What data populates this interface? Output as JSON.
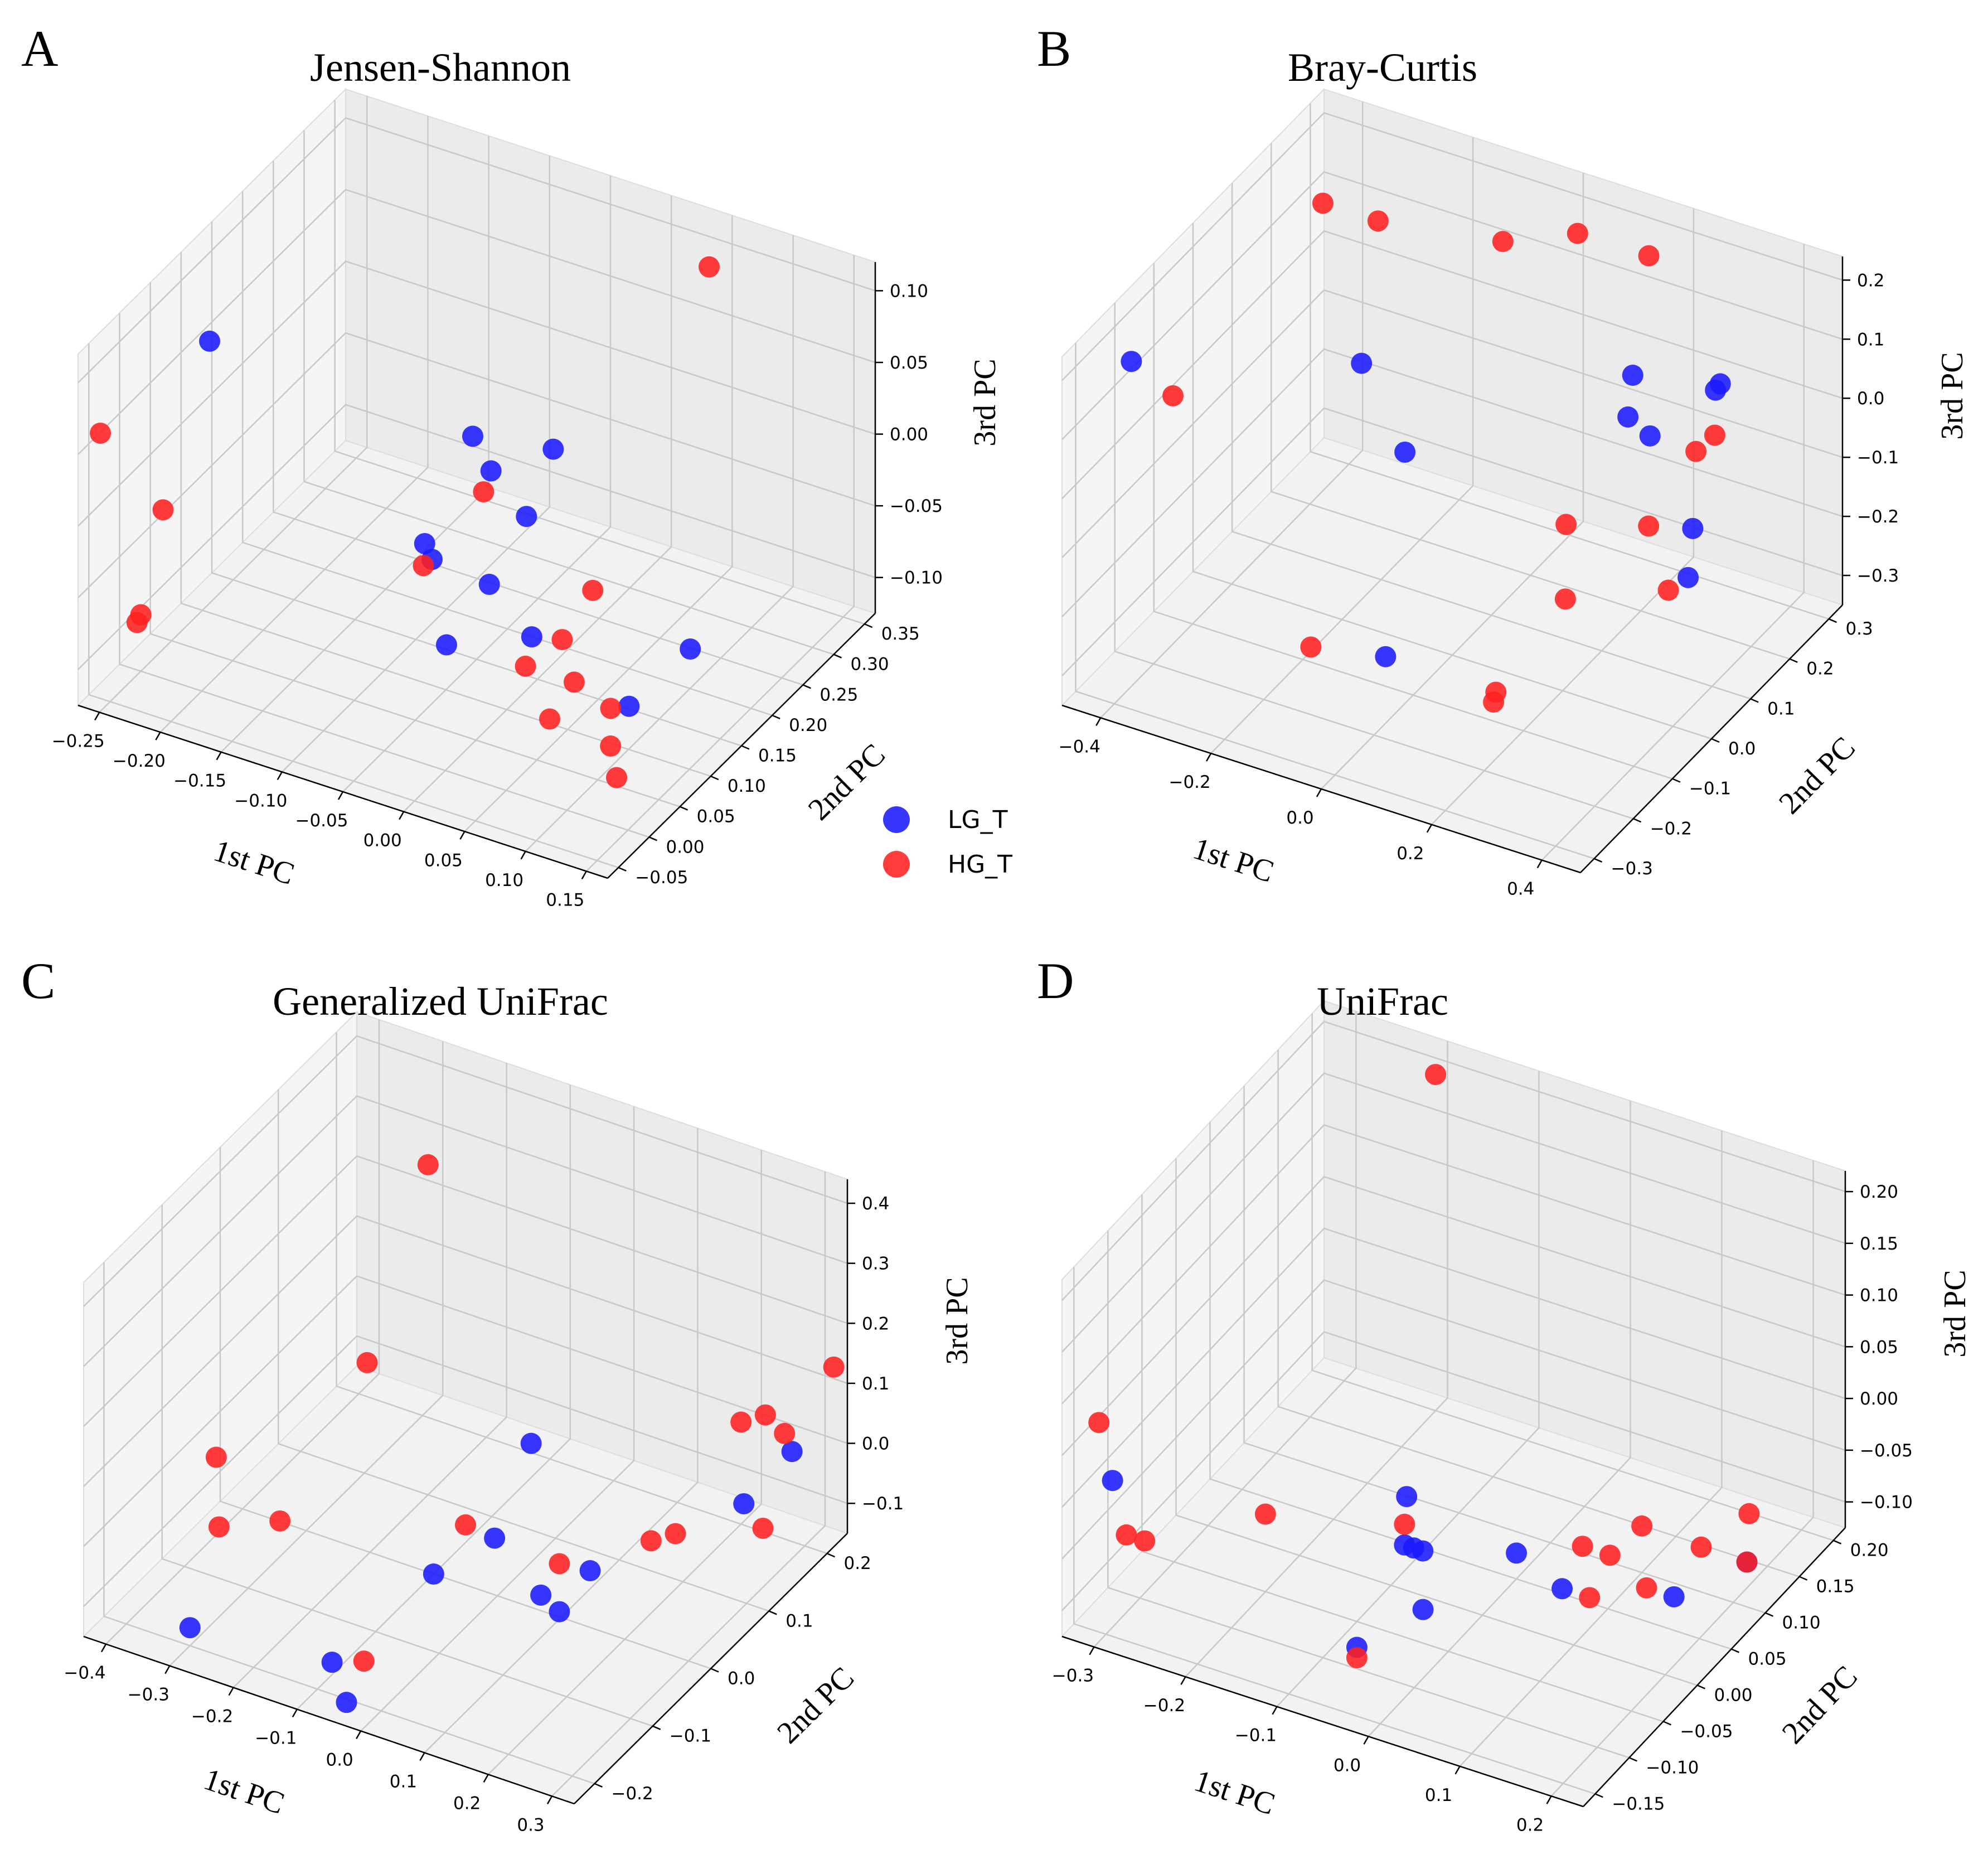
{
  "legend": [
    {
      "label": "LG_T",
      "color": "#1a1aff"
    },
    {
      "label": "HG_T",
      "color": "#ff2020"
    }
  ],
  "chart_data": [
    {
      "type": "scatter",
      "panel_letter": "A",
      "title": "Jensen-Shannon",
      "xlabel": "1st PC",
      "ylabel": "2nd PC",
      "zlabel": "3rd PC",
      "x_ticks": [
        "−0.25",
        "−0.20",
        "−0.15",
        "−0.10",
        "−0.05",
        "0.00",
        "0.05",
        "0.10",
        "0.15"
      ],
      "y_ticks": [
        "−0.05",
        "0.00",
        "0.05",
        "0.10",
        "0.15",
        "0.20",
        "0.25",
        "0.30",
        "0.35"
      ],
      "z_ticks": [
        "−0.10",
        "−0.05",
        "0.00",
        "0.05",
        "0.10"
      ],
      "series": [
        {
          "name": "LG_T",
          "color": "#1a1aff",
          "points": [
            [
              -0.239,
              0.09,
              0.07
            ],
            [
              -0.095,
              0.32,
              -0.11
            ],
            [
              -0.129,
              0.3,
              -0.055
            ],
            [
              -0.114,
              0.3,
              -0.075
            ],
            [
              -0.073,
              0.32,
              -0.057
            ],
            [
              -0.123,
              0.21,
              -0.09
            ],
            [
              -0.122,
              0.22,
              -0.105
            ],
            [
              -0.08,
              0.23,
              -0.115
            ],
            [
              -0.03,
              0.2,
              -0.125
            ],
            [
              0.06,
              0.18,
              -0.14
            ],
            [
              0.08,
              0.24,
              -0.12
            ],
            [
              -0.1,
              0.2,
              -0.15
            ]
          ]
        },
        {
          "name": "HG_T",
          "color": "#ff2020",
          "points": [
            [
              -0.258,
              -0.05,
              0.06
            ],
            [
              -0.252,
              0.04,
              -0.03
            ],
            [
              -0.245,
              -0.01,
              -0.08
            ],
            [
              -0.238,
              -0.03,
              -0.075
            ],
            [
              -0.11,
              0.28,
              -0.08
            ],
            [
              -0.119,
              0.2,
              -0.1
            ],
            [
              0.05,
              0.33,
              0.1
            ],
            [
              0.01,
              0.22,
              -0.09
            ],
            [
              -0.005,
              0.2,
              -0.12
            ],
            [
              -0.02,
              0.17,
              -0.13
            ],
            [
              0.02,
              0.17,
              -0.13
            ],
            [
              0.01,
              0.15,
              -0.15
            ],
            [
              0.05,
              0.17,
              -0.14
            ],
            [
              0.06,
              0.15,
              -0.155
            ],
            [
              0.07,
              0.14,
              -0.17
            ]
          ]
        }
      ]
    },
    {
      "type": "scatter",
      "panel_letter": "B",
      "title": "Bray-Curtis",
      "xlabel": "1st PC",
      "ylabel": "2nd PC",
      "zlabel": "3rd PC",
      "x_ticks": [
        "−0.4",
        "−0.2",
        "0.0",
        "0.2",
        "0.4"
      ],
      "y_ticks": [
        "−0.3",
        "−0.2",
        "−0.1",
        "0.0",
        "0.1",
        "0.2",
        "0.3"
      ],
      "z_ticks": [
        "−0.3",
        "−0.2",
        "−0.1",
        "0.0",
        "0.1",
        "0.2"
      ],
      "series": [
        {
          "name": "LG_T",
          "color": "#1a1aff",
          "points": [
            [
              -0.44,
              -0.2,
              0.15
            ],
            [
              -0.2,
              0.05,
              0.05
            ],
            [
              -0.1,
              0.02,
              -0.05
            ],
            [
              -0.05,
              -0.1,
              -0.3
            ],
            [
              0.15,
              0.25,
              0.0
            ],
            [
              0.12,
              0.28,
              -0.1
            ],
            [
              0.16,
              0.28,
              -0.12
            ],
            [
              0.3,
              0.25,
              0.02
            ],
            [
              0.33,
              0.22,
              0.06
            ],
            [
              0.28,
              0.22,
              -0.2
            ],
            [
              0.3,
              0.18,
              -0.25
            ]
          ]
        },
        {
          "name": "HG_T",
          "color": "#ff2020",
          "points": [
            [
              -0.4,
              -0.15,
              0.07
            ],
            [
              -0.27,
              0.05,
              0.3
            ],
            [
              -0.17,
              0.05,
              0.3
            ],
            [
              -0.05,
              0.2,
              0.2
            ],
            [
              0.05,
              0.25,
              0.21
            ],
            [
              0.25,
              0.15,
              0.3
            ],
            [
              0.3,
              0.2,
              -0.05
            ],
            [
              0.32,
              0.22,
              -0.03
            ],
            [
              0.1,
              0.15,
              -0.2
            ],
            [
              0.12,
              0.12,
              -0.3
            ],
            [
              0.2,
              0.22,
              -0.22
            ],
            [
              0.25,
              0.2,
              -0.3
            ],
            [
              -0.15,
              -0.15,
              -0.28
            ],
            [
              0.15,
              -0.1,
              -0.3
            ],
            [
              0.16,
              -0.12,
              -0.3
            ]
          ]
        }
      ]
    },
    {
      "type": "scatter",
      "panel_letter": "C",
      "title": "Generalized UniFrac",
      "xlabel": "1st PC",
      "ylabel": "2nd PC",
      "zlabel": "3rd PC",
      "x_ticks": [
        "−0.4",
        "−0.3",
        "−0.2",
        "−0.1",
        "0.0",
        "0.1",
        "0.2",
        "0.3"
      ],
      "y_ticks": [
        "−0.2",
        "−0.1",
        "0.0",
        "0.1",
        "0.2"
      ],
      "z_ticks": [
        "−0.1",
        "0.0",
        "0.1",
        "0.2",
        "0.3",
        "0.4"
      ],
      "series": [
        {
          "name": "LG_T",
          "color": "#1a1aff",
          "points": [
            [
              -0.3,
              -0.2,
              -0.12
            ],
            [
              -0.1,
              0.0,
              -0.15
            ],
            [
              -0.05,
              0.05,
              -0.12
            ],
            [
              -0.02,
              0.08,
              0.02
            ],
            [
              0.05,
              0.02,
              -0.15
            ],
            [
              0.07,
              0.03,
              -0.18
            ],
            [
              0.1,
              0.05,
              -0.12
            ],
            [
              0.25,
              0.15,
              -0.05
            ],
            [
              0.28,
              0.2,
              0.0
            ],
            [
              -0.15,
              -0.12,
              -0.2
            ],
            [
              -0.1,
              -0.15,
              -0.22
            ]
          ]
        },
        {
          "name": "HG_T",
          "color": "#ff2020",
          "points": [
            [
              -0.2,
              0.1,
              0.4
            ],
            [
              -0.35,
              -0.1,
              0.05
            ],
            [
              -0.3,
              -0.15,
              0.0
            ],
            [
              -0.25,
              -0.1,
              -0.02
            ],
            [
              -0.25,
              0.05,
              0.1
            ],
            [
              -0.05,
              0.0,
              -0.05
            ],
            [
              0.07,
              0.03,
              -0.1
            ],
            [
              0.15,
              0.1,
              -0.1
            ],
            [
              0.17,
              0.12,
              -0.1
            ],
            [
              0.2,
              0.2,
              0.02
            ],
            [
              0.22,
              0.22,
              0.02
            ],
            [
              0.25,
              0.22,
              0.0
            ],
            [
              0.28,
              0.15,
              -0.08
            ],
            [
              0.3,
              0.25,
              0.1
            ],
            [
              -0.1,
              -0.12,
              -0.18
            ]
          ]
        }
      ]
    },
    {
      "type": "scatter",
      "panel_letter": "D",
      "title": "UniFrac",
      "xlabel": "1st PC",
      "ylabel": "2nd PC",
      "zlabel": "3rd PC",
      "x_ticks": [
        "−0.3",
        "−0.2",
        "−0.1",
        "0.0",
        "0.1",
        "0.2"
      ],
      "y_ticks": [
        "−0.15",
        "−0.10",
        "−0.05",
        "0.00",
        "0.05",
        "0.10",
        "0.15",
        "0.20"
      ],
      "z_ticks": [
        "−0.10",
        "−0.05",
        "0.00",
        "0.05",
        "0.10",
        "0.15",
        "0.20"
      ],
      "series": [
        {
          "name": "LG_T",
          "color": "#1a1aff",
          "points": [
            [
              -0.33,
              -0.1,
              -0.02
            ],
            [
              -0.12,
              0.05,
              -0.08
            ],
            [
              -0.1,
              0.02,
              -0.1
            ],
            [
              -0.09,
              0.02,
              -0.1
            ],
            [
              -0.08,
              0.02,
              -0.1
            ],
            [
              -0.05,
              -0.02,
              -0.12
            ],
            [
              0.0,
              0.05,
              -0.1
            ],
            [
              0.05,
              0.05,
              -0.12
            ],
            [
              0.15,
              0.08,
              -0.12
            ],
            [
              0.2,
              0.12,
              -0.1
            ],
            [
              -0.1,
              -0.05,
              -0.15
            ]
          ]
        },
        {
          "name": "HG_T",
          "color": "#ff2020",
          "points": [
            [
              -0.2,
              0.2,
              0.2
            ],
            [
              -0.33,
              -0.12,
              0.05
            ],
            [
              -0.3,
              -0.12,
              -0.05
            ],
            [
              -0.28,
              -0.12,
              -0.05
            ],
            [
              -0.2,
              -0.05,
              -0.05
            ],
            [
              -0.1,
              0.02,
              -0.08
            ],
            [
              0.05,
              0.08,
              -0.1
            ],
            [
              0.08,
              0.08,
              -0.1
            ],
            [
              0.1,
              0.1,
              -0.08
            ],
            [
              0.12,
              0.08,
              -0.12
            ],
            [
              0.15,
              0.12,
              -0.1
            ],
            [
              0.18,
              0.15,
              -0.08
            ],
            [
              0.2,
              0.12,
              -0.1
            ],
            [
              -0.1,
              -0.05,
              -0.16
            ],
            [
              0.08,
              0.05,
              -0.12
            ]
          ]
        }
      ]
    }
  ]
}
